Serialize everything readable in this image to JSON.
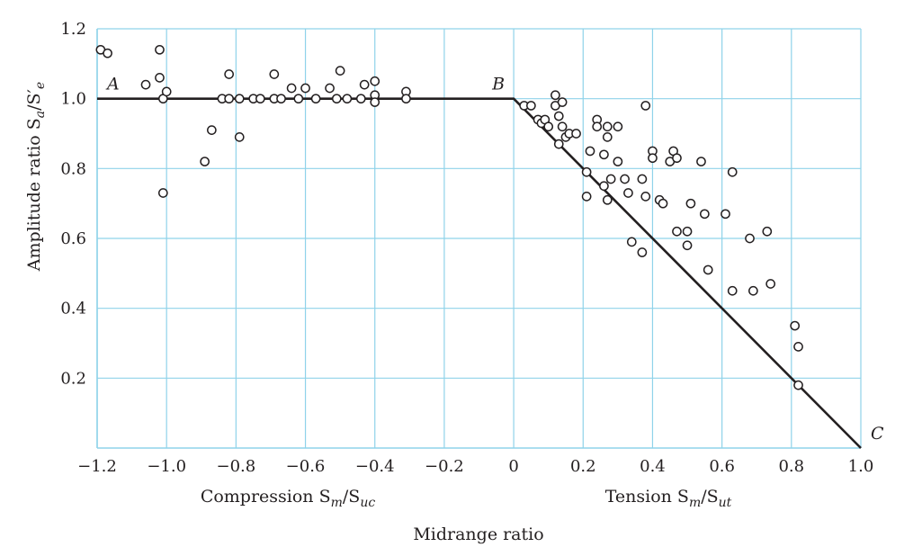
{
  "chart_data": {
    "type": "scatter",
    "title": "",
    "ylabel": "Amplitude ratio S_a/S'_e",
    "ylabel_parts": {
      "main": "Amplitude ratio S",
      "sub1": "a",
      "slash": "/S′",
      "sub2": "e"
    },
    "xlabel": "Midrange ratio",
    "compression_label_parts": {
      "main": "Compression S",
      "sub1": "m",
      "slash": "/S",
      "sub2": "uc"
    },
    "tension_label_parts": {
      "main": "Tension S",
      "sub1": "m",
      "slash": "/S",
      "sub2": "ut"
    },
    "xlim": [
      -1.2,
      1.0
    ],
    "ylim": [
      0.0,
      1.2
    ],
    "grid": true,
    "x_ticks": [
      {
        "value": -1.2,
        "label": "−1.2"
      },
      {
        "value": -1.0,
        "label": "−1.0"
      },
      {
        "value": -0.8,
        "label": "−0.8"
      },
      {
        "value": -0.6,
        "label": "−0.6"
      },
      {
        "value": -0.4,
        "label": "−0.4"
      },
      {
        "value": -0.2,
        "label": "−0.2"
      },
      {
        "value": 0.0,
        "label": "0"
      },
      {
        "value": 0.2,
        "label": "0.2"
      },
      {
        "value": 0.4,
        "label": "0.4"
      },
      {
        "value": 0.6,
        "label": "0.6"
      },
      {
        "value": 0.8,
        "label": "0.8"
      },
      {
        "value": 1.0,
        "label": "1.0"
      }
    ],
    "y_ticks": [
      {
        "value": 0.2,
        "label": "0.2"
      },
      {
        "value": 0.4,
        "label": "0.4"
      },
      {
        "value": 0.6,
        "label": "0.6"
      },
      {
        "value": 0.8,
        "label": "0.8"
      },
      {
        "value": 1.0,
        "label": "1.0"
      },
      {
        "value": 1.2,
        "label": "1.2"
      }
    ],
    "line": {
      "points": [
        [
          -1.2,
          1.0
        ],
        [
          0.0,
          1.0
        ],
        [
          1.0,
          0.0
        ]
      ]
    },
    "annotations": [
      {
        "text": "A",
        "x": -1.2,
        "y": 1.0,
        "anchor": "above-right"
      },
      {
        "text": "B",
        "x": 0.0,
        "y": 1.0,
        "anchor": "above-left"
      },
      {
        "text": "C",
        "x": 1.0,
        "y": 0.0,
        "anchor": "above-right"
      }
    ],
    "points": [
      [
        -1.19,
        1.14
      ],
      [
        -1.17,
        1.13
      ],
      [
        -1.02,
        1.14
      ],
      [
        -1.06,
        1.04
      ],
      [
        -1.02,
        1.06
      ],
      [
        -1.01,
        1.0
      ],
      [
        -1.0,
        1.02
      ],
      [
        -1.01,
        0.73
      ],
      [
        -0.89,
        0.82
      ],
      [
        -0.87,
        0.91
      ],
      [
        -0.84,
        1.0
      ],
      [
        -0.82,
        1.07
      ],
      [
        -0.82,
        1.0
      ],
      [
        -0.79,
        1.0
      ],
      [
        -0.79,
        0.89
      ],
      [
        -0.75,
        1.0
      ],
      [
        -0.73,
        1.0
      ],
      [
        -0.69,
        1.07
      ],
      [
        -0.69,
        1.0
      ],
      [
        -0.67,
        1.0
      ],
      [
        -0.64,
        1.03
      ],
      [
        -0.62,
        1.0
      ],
      [
        -0.6,
        1.03
      ],
      [
        -0.57,
        1.0
      ],
      [
        -0.53,
        1.03
      ],
      [
        -0.51,
        1.0
      ],
      [
        -0.5,
        1.08
      ],
      [
        -0.48,
        1.0
      ],
      [
        -0.44,
        1.0
      ],
      [
        -0.43,
        1.04
      ],
      [
        -0.4,
        1.05
      ],
      [
        -0.4,
        1.01
      ],
      [
        -0.4,
        0.99
      ],
      [
        -0.31,
        1.02
      ],
      [
        -0.31,
        1.0
      ],
      [
        0.03,
        0.98
      ],
      [
        0.05,
        0.98
      ],
      [
        0.07,
        0.94
      ],
      [
        0.08,
        0.93
      ],
      [
        0.09,
        0.94
      ],
      [
        0.1,
        0.92
      ],
      [
        0.12,
        1.01
      ],
      [
        0.12,
        0.98
      ],
      [
        0.13,
        0.95
      ],
      [
        0.14,
        0.99
      ],
      [
        0.14,
        0.92
      ],
      [
        0.15,
        0.89
      ],
      [
        0.16,
        0.9
      ],
      [
        0.13,
        0.87
      ],
      [
        0.18,
        0.9
      ],
      [
        0.21,
        0.79
      ],
      [
        0.21,
        0.72
      ],
      [
        0.22,
        0.85
      ],
      [
        0.24,
        0.94
      ],
      [
        0.24,
        0.92
      ],
      [
        0.26,
        0.84
      ],
      [
        0.26,
        0.75
      ],
      [
        0.27,
        0.92
      ],
      [
        0.27,
        0.89
      ],
      [
        0.27,
        0.71
      ],
      [
        0.28,
        0.77
      ],
      [
        0.3,
        0.92
      ],
      [
        0.3,
        0.82
      ],
      [
        0.32,
        0.77
      ],
      [
        0.33,
        0.73
      ],
      [
        0.34,
        0.59
      ],
      [
        0.37,
        0.77
      ],
      [
        0.37,
        0.56
      ],
      [
        0.38,
        0.98
      ],
      [
        0.38,
        0.72
      ],
      [
        0.4,
        0.85
      ],
      [
        0.4,
        0.83
      ],
      [
        0.42,
        0.71
      ],
      [
        0.43,
        0.7
      ],
      [
        0.45,
        0.82
      ],
      [
        0.46,
        0.85
      ],
      [
        0.47,
        0.83
      ],
      [
        0.47,
        0.62
      ],
      [
        0.5,
        0.58
      ],
      [
        0.5,
        0.62
      ],
      [
        0.51,
        0.7
      ],
      [
        0.54,
        0.82
      ],
      [
        0.55,
        0.67
      ],
      [
        0.56,
        0.51
      ],
      [
        0.61,
        0.67
      ],
      [
        0.63,
        0.79
      ],
      [
        0.63,
        0.45
      ],
      [
        0.68,
        0.6
      ],
      [
        0.69,
        0.45
      ],
      [
        0.73,
        0.62
      ],
      [
        0.74,
        0.47
      ],
      [
        0.81,
        0.35
      ],
      [
        0.82,
        0.29
      ],
      [
        0.82,
        0.18
      ]
    ]
  }
}
